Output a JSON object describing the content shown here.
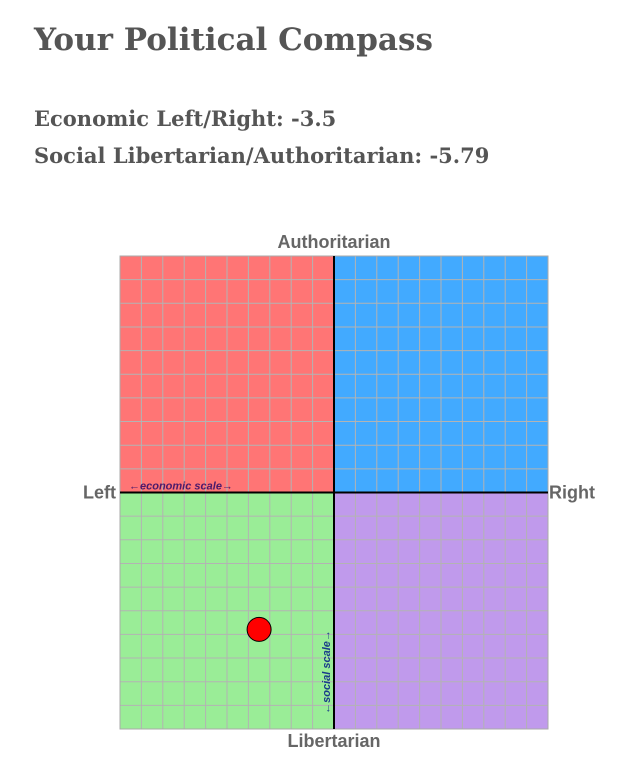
{
  "header": {
    "title": "Your Political Compass",
    "economic_label": "Economic Left/Right:",
    "economic_value": "-3.5",
    "social_label": "Social Libertarian/Authoritarian:",
    "social_value": "-5.79"
  },
  "chart_data": {
    "type": "scatter",
    "title": "Your Political Compass",
    "axis_labels": {
      "top": "Authoritarian",
      "bottom": "Libertarian",
      "left": "Left",
      "right": "Right"
    },
    "scale_labels": {
      "economic": "←economic scale→",
      "social": "←social scale→"
    },
    "xlim": [
      -10,
      10
    ],
    "ylim": [
      -10,
      10
    ],
    "grid": true,
    "grid_divisions": 20,
    "quadrant_colors": {
      "authoritarian_left": "#ff7575",
      "authoritarian_right": "#42aaff",
      "libertarian_left": "#9aed97",
      "libertarian_right": "#c09aec"
    },
    "point": {
      "x": -3.5,
      "y": -5.79,
      "color": "#ff0000"
    }
  }
}
